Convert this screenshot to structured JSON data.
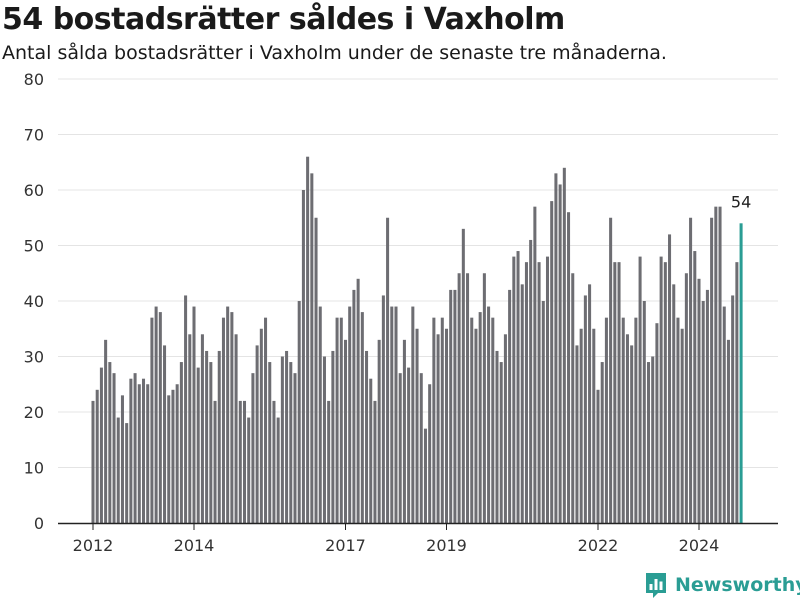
{
  "title": "54 bostadsrätter såldes i Vaxholm",
  "subtitle": "Antal sålda bostadsrätter i Vaxholm under de senaste tre månaderna.",
  "brand": {
    "name": "Newsworthy",
    "icon": "newsworthy-logo-icon"
  },
  "colors": {
    "bar": "#6d6d72",
    "highlight": "#2a9d94",
    "grid": "#e4e4e4",
    "axis": "#222222",
    "brand": "#2a9d94"
  },
  "chart_data": {
    "type": "bar",
    "title": "54 bostadsrätter såldes i Vaxholm",
    "subtitle": "Antal sålda bostadsrätter i Vaxholm under de senaste tre månaderna.",
    "xlabel": "",
    "ylabel": "",
    "ylim": [
      0,
      80
    ],
    "yticks": [
      0,
      10,
      20,
      30,
      40,
      50,
      60,
      70,
      80
    ],
    "xlim": [
      2012,
      2025.5
    ],
    "xticks": [
      {
        "label": "2012",
        "x": 2012
      },
      {
        "label": "2014",
        "x": 2014
      },
      {
        "label": "2017",
        "x": 2017
      },
      {
        "label": "2019",
        "x": 2019
      },
      {
        "label": "2022",
        "x": 2022
      },
      {
        "label": "2024",
        "x": 2024
      }
    ],
    "grid": true,
    "start": "2012-01",
    "frequency": "monthly",
    "highlight_label": "54",
    "values": [
      22,
      24,
      28,
      33,
      29,
      27,
      19,
      23,
      18,
      26,
      27,
      25,
      26,
      25,
      37,
      39,
      38,
      32,
      23,
      24,
      25,
      29,
      41,
      34,
      39,
      28,
      34,
      31,
      29,
      22,
      31,
      37,
      39,
      38,
      34,
      22,
      22,
      19,
      27,
      32,
      35,
      37,
      29,
      22,
      19,
      30,
      31,
      29,
      27,
      40,
      60,
      66,
      63,
      55,
      39,
      30,
      22,
      31,
      37,
      37,
      33,
      39,
      42,
      44,
      38,
      31,
      26,
      22,
      33,
      41,
      55,
      39,
      39,
      27,
      33,
      28,
      39,
      35,
      27,
      17,
      25,
      37,
      34,
      37,
      35,
      42,
      42,
      45,
      53,
      45,
      37,
      35,
      38,
      45,
      39,
      37,
      31,
      29,
      34,
      42,
      48,
      49,
      43,
      47,
      51,
      57,
      47,
      40,
      48,
      58,
      63,
      61,
      64,
      56,
      45,
      32,
      35,
      41,
      43,
      35,
      24,
      29,
      37,
      55,
      47,
      47,
      37,
      34,
      32,
      37,
      48,
      40,
      29,
      30,
      36,
      48,
      47,
      52,
      43,
      37,
      35,
      45,
      55,
      49,
      44,
      40,
      42,
      55,
      57,
      57,
      39,
      33,
      41,
      47,
      54
    ]
  }
}
